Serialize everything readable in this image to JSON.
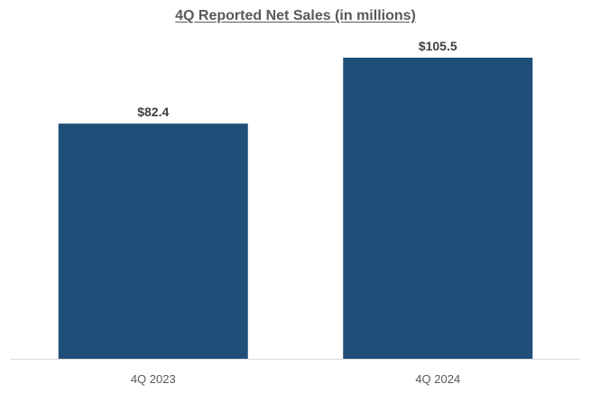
{
  "chart_data": {
    "type": "bar",
    "title": "4Q Reported Net Sales (in millions)",
    "categories": [
      "4Q 2023",
      "4Q 2024"
    ],
    "values": [
      82.4,
      105.5
    ],
    "data_labels": [
      "$82.4",
      "$105.5"
    ],
    "xlabel": "",
    "ylabel": "",
    "ylim": [
      0,
      105.5
    ],
    "grid": false,
    "legend": "none"
  },
  "colors": {
    "bar": "#1f4e79",
    "axis": "#d9d9d9",
    "title": "#595959",
    "data_label": "#404040",
    "tick_label": "#595959"
  }
}
